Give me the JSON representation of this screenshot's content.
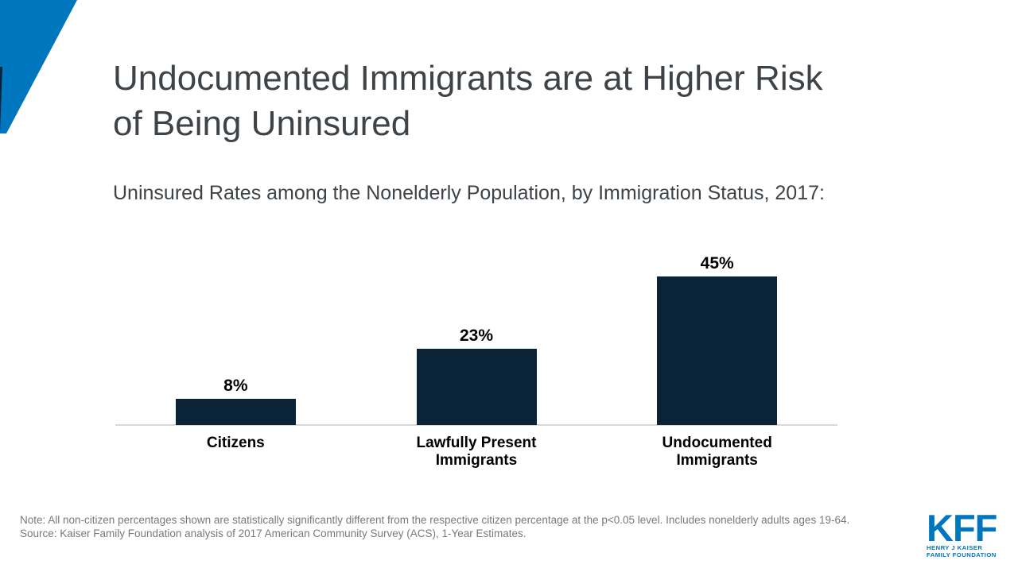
{
  "colors": {
    "brand_blue": "#0076be",
    "bar_navy": "#0b2336",
    "axis_gray": "#d9d9d9",
    "title_gray": "#3e4347",
    "note_gray": "#77797c"
  },
  "header": {
    "title_line1": "Undocumented Immigrants are at Higher Risk",
    "title_line2": "of Being Uninsured",
    "subtitle": "Uninsured Rates among the Nonelderly Population, by Immigration Status, 2017:"
  },
  "chart_data": {
    "type": "bar",
    "title": "Uninsured Rates among the Nonelderly Population, by Immigration Status, 2017:",
    "categories": [
      "Citizens",
      "Lawfully Present Immigrants",
      "Undocumented Immigrants"
    ],
    "values": [
      8,
      23,
      45
    ],
    "value_labels": [
      "8%",
      "23%",
      "45%"
    ],
    "xlabel": "",
    "ylabel": "",
    "ylim": [
      0,
      50
    ],
    "grid": false,
    "legend": "none",
    "bar_color": "#0b2336",
    "baseline_color": "#d9d9d9"
  },
  "footer": {
    "note": "Note: All non-citizen percentages shown are statistically significantly different from the respective citizen percentage at the p<0.05 level. Includes nonelderly adults ages 19-64.",
    "source": "Source: Kaiser Family Foundation analysis of 2017 American Community Survey (ACS), 1-Year Estimates."
  },
  "logo": {
    "acronym": "KFF",
    "line1": "HENRY J KAISER",
    "line2": "FAMILY FOUNDATION"
  }
}
